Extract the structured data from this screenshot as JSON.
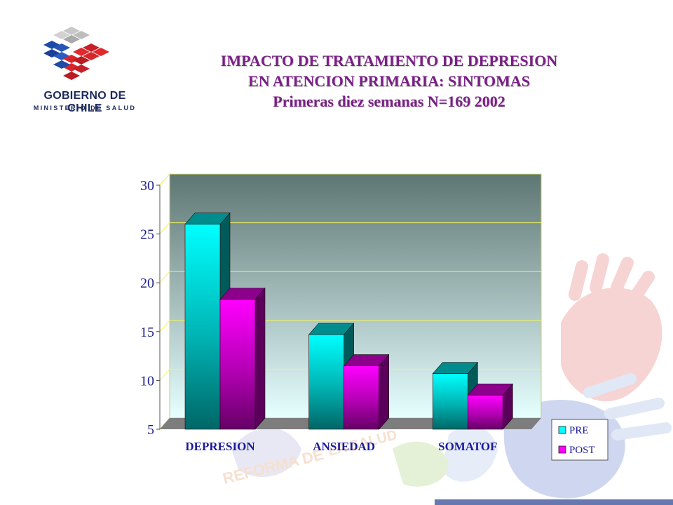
{
  "header": {
    "logo": {
      "name": "GOBIERNO DE CHILE",
      "sub": "MINISTERIO DE SALUD"
    },
    "title_lines": [
      "IMPACTO DE TRATAMIENTO DE DEPRESION",
      "EN ATENCION PRIMARIA: SINTOMAS",
      "Primeras diez semanas  N=169 2002"
    ]
  },
  "watermark": {
    "text_left": "REFORMA DE",
    "text_right": "LA SALUD"
  },
  "chart_data": {
    "type": "bar",
    "title": "IMPACTO DE TRATAMIENTO DE DEPRESION EN ATENCION PRIMARIA: SINTOMAS",
    "subtitle": "Primeras diez semanas  N=169 2002",
    "categories": [
      "DEPRESION",
      "ANSIEDAD",
      "SOMATOF"
    ],
    "series": [
      {
        "name": "PRE",
        "values": [
          26,
          14.7,
          10.7
        ],
        "color": "#00ffff"
      },
      {
        "name": "POST",
        "values": [
          18.3,
          11.5,
          8.5
        ],
        "color": "#ff00ff"
      }
    ],
    "yticks": [
      5,
      10,
      15,
      20,
      25,
      30
    ],
    "ylim": [
      5,
      30
    ],
    "xlabel": "",
    "ylabel": "",
    "grid": true,
    "legend_position": "bottom-right",
    "three_d": true,
    "colors": {
      "back_wall_top": "#5e7673",
      "back_wall_bottom": "#e6ffff",
      "grid": "#f2f25a",
      "floor": "#7d7d7d"
    }
  }
}
